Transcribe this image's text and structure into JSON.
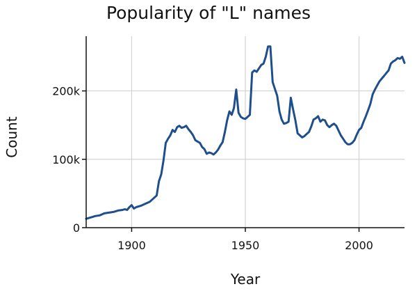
{
  "chart_data": {
    "type": "line",
    "title": "Popularity of \"L\" names",
    "xlabel": "Year",
    "ylabel": "Count",
    "xlim": [
      1880,
      2020
    ],
    "ylim": [
      0,
      280000
    ],
    "x_ticks": [
      1900,
      1950,
      2000
    ],
    "x_tick_labels": [
      "1900",
      "1950",
      "2000"
    ],
    "y_ticks": [
      0,
      100000,
      200000
    ],
    "y_tick_labels": [
      "0",
      "100k",
      "200k"
    ],
    "grid": true,
    "legend": "none",
    "series": [
      {
        "color": "#1f4e8c",
        "x": [
          1880,
          1882,
          1884,
          1886,
          1888,
          1890,
          1892,
          1894,
          1896,
          1897,
          1898,
          1899,
          1900,
          1901,
          1902,
          1904,
          1906,
          1908,
          1910,
          1911,
          1912,
          1913,
          1914,
          1915,
          1916,
          1917,
          1918,
          1919,
          1920,
          1921,
          1922,
          1923,
          1924,
          1925,
          1926,
          1927,
          1928,
          1929,
          1930,
          1931,
          1932,
          1933,
          1934,
          1935,
          1936,
          1937,
          1938,
          1939,
          1940,
          1941,
          1942,
          1943,
          1944,
          1945,
          1946,
          1947,
          1948,
          1949,
          1950,
          1951,
          1952,
          1953,
          1954,
          1955,
          1956,
          1957,
          1958,
          1959,
          1960,
          1961,
          1962,
          1963,
          1964,
          1965,
          1966,
          1967,
          1968,
          1969,
          1970,
          1971,
          1972,
          1973,
          1974,
          1975,
          1976,
          1977,
          1978,
          1979,
          1980,
          1981,
          1982,
          1983,
          1984,
          1985,
          1986,
          1987,
          1988,
          1989,
          1990,
          1991,
          1992,
          1993,
          1994,
          1995,
          1996,
          1997,
          1998,
          1999,
          2000,
          2001,
          2002,
          2003,
          2004,
          2005,
          2006,
          2007,
          2008,
          2009,
          2010,
          2011,
          2012,
          2013,
          2014,
          2015,
          2016,
          2017,
          2018,
          2019,
          2020
        ],
        "y": [
          13000,
          15000,
          17000,
          18000,
          21000,
          22000,
          23000,
          25000,
          26000,
          27000,
          26000,
          30000,
          33000,
          28000,
          30000,
          32000,
          35000,
          38000,
          44000,
          47000,
          68000,
          78000,
          98000,
          124000,
          130000,
          135000,
          143000,
          140000,
          147000,
          149000,
          146000,
          147000,
          149000,
          144000,
          140000,
          135000,
          128000,
          126000,
          124000,
          118000,
          115000,
          108000,
          110000,
          109000,
          107000,
          110000,
          114000,
          120000,
          125000,
          140000,
          157000,
          170000,
          165000,
          175000,
          202000,
          168000,
          162000,
          160000,
          159000,
          162000,
          165000,
          227000,
          230000,
          228000,
          233000,
          238000,
          240000,
          250000,
          265000,
          265000,
          213000,
          203000,
          193000,
          170000,
          158000,
          152000,
          153000,
          155000,
          190000,
          173000,
          157000,
          138000,
          135000,
          132000,
          134000,
          137000,
          140000,
          148000,
          158000,
          160000,
          163000,
          155000,
          158000,
          157000,
          150000,
          147000,
          150000,
          152000,
          149000,
          142000,
          135000,
          130000,
          125000,
          122000,
          122000,
          124000,
          128000,
          136000,
          143000,
          146000,
          155000,
          163000,
          172000,
          181000,
          195000,
          202000,
          208000,
          214000,
          218000,
          222000,
          226000,
          230000,
          240000,
          243000,
          245000,
          248000,
          247000,
          250000,
          241000
        ]
      }
    ]
  }
}
